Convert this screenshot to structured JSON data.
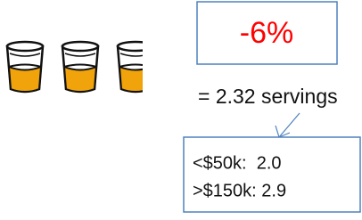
{
  "callout": "-6%",
  "servings": "= 2.32 servings",
  "breakdown": [
    "<$50k:  2.0",
    ">$150k: 2.9"
  ]
}
